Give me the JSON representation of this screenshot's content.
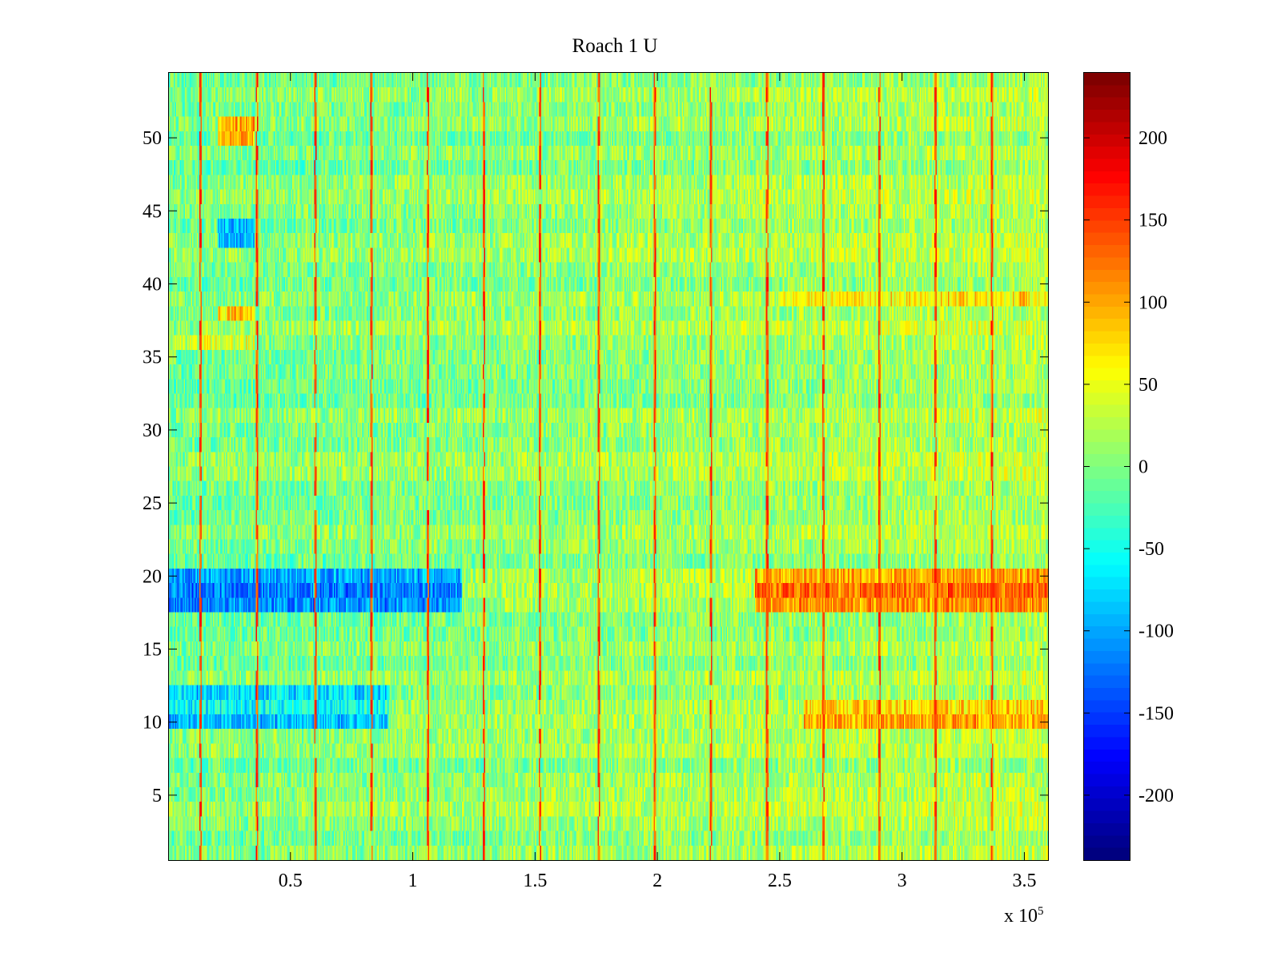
{
  "chart_data": {
    "type": "heatmap",
    "title": "Roach 1 U",
    "xlabel": "",
    "ylabel": "",
    "x_exponent_label": {
      "base": "x 10",
      "exp": "5"
    },
    "xlim": [
      0,
      3.6
    ],
    "ylim": [
      0.5,
      54.5
    ],
    "rows": 54,
    "columns": 720,
    "x_ticks": [
      0.5,
      1,
      1.5,
      2,
      2.5,
      3,
      3.5
    ],
    "x_tick_labels": [
      "0.5",
      "1",
      "1.5",
      "2",
      "2.5",
      "3",
      "3.5"
    ],
    "y_ticks": [
      5,
      10,
      15,
      20,
      25,
      30,
      35,
      40,
      45,
      50
    ],
    "y_tick_labels": [
      "5",
      "10",
      "15",
      "20",
      "25",
      "30",
      "35",
      "40",
      "45",
      "50"
    ],
    "colorbar": {
      "colormap": "jet",
      "clim": [
        -240,
        240
      ],
      "ticks": [
        -200,
        -150,
        -100,
        -50,
        0,
        50,
        100,
        150,
        200
      ],
      "tick_labels": [
        "-200",
        "-150",
        "-100",
        "-50",
        "0",
        "50",
        "100",
        "150",
        "200"
      ]
    },
    "spike_columns_x": [
      0.13,
      0.36,
      0.6,
      0.83,
      1.06,
      1.29,
      1.52,
      1.76,
      1.99,
      2.22,
      2.45,
      2.68,
      2.91,
      3.14,
      3.37
    ],
    "spike_value": 180,
    "baseline": {
      "early_mean": -5,
      "late_mean": 25,
      "noise_amplitude": 40
    },
    "row_offsets": [
      {
        "row": 10,
        "x_start": 0,
        "x_end": 0.9,
        "value": -100
      },
      {
        "row": 11,
        "x_start": 0,
        "x_end": 0.9,
        "value": -60
      },
      {
        "row": 12,
        "x_start": 0,
        "x_end": 0.9,
        "value": -70
      },
      {
        "row": 18,
        "x_start": 0,
        "x_end": 1.2,
        "value": -120
      },
      {
        "row": 19,
        "x_start": 0,
        "x_end": 1.2,
        "value": -130
      },
      {
        "row": 20,
        "x_start": 0,
        "x_end": 1.2,
        "value": -110
      },
      {
        "row": 10,
        "x_start": 2.6,
        "x_end": 3.6,
        "value": 70
      },
      {
        "row": 11,
        "x_start": 2.6,
        "x_end": 3.6,
        "value": 50
      },
      {
        "row": 18,
        "x_start": 2.4,
        "x_end": 3.6,
        "value": 80
      },
      {
        "row": 19,
        "x_start": 2.4,
        "x_end": 3.6,
        "value": 100
      },
      {
        "row": 20,
        "x_start": 2.4,
        "x_end": 3.6,
        "value": 70
      },
      {
        "row": 39,
        "x_start": 2.5,
        "x_end": 3.6,
        "value": 40
      },
      {
        "row": 43,
        "x_start": 0.2,
        "x_end": 0.35,
        "value": -90
      },
      {
        "row": 44,
        "x_start": 0.2,
        "x_end": 0.35,
        "value": -80
      },
      {
        "row": 50,
        "x_start": 0.2,
        "x_end": 0.35,
        "value": 110
      },
      {
        "row": 51,
        "x_start": 0.2,
        "x_end": 0.35,
        "value": 90
      },
      {
        "row": 38,
        "x_start": 0.2,
        "x_end": 0.35,
        "value": 80
      },
      {
        "row": 36,
        "x_start": 0,
        "x_end": 0.35,
        "value": 40
      }
    ]
  }
}
